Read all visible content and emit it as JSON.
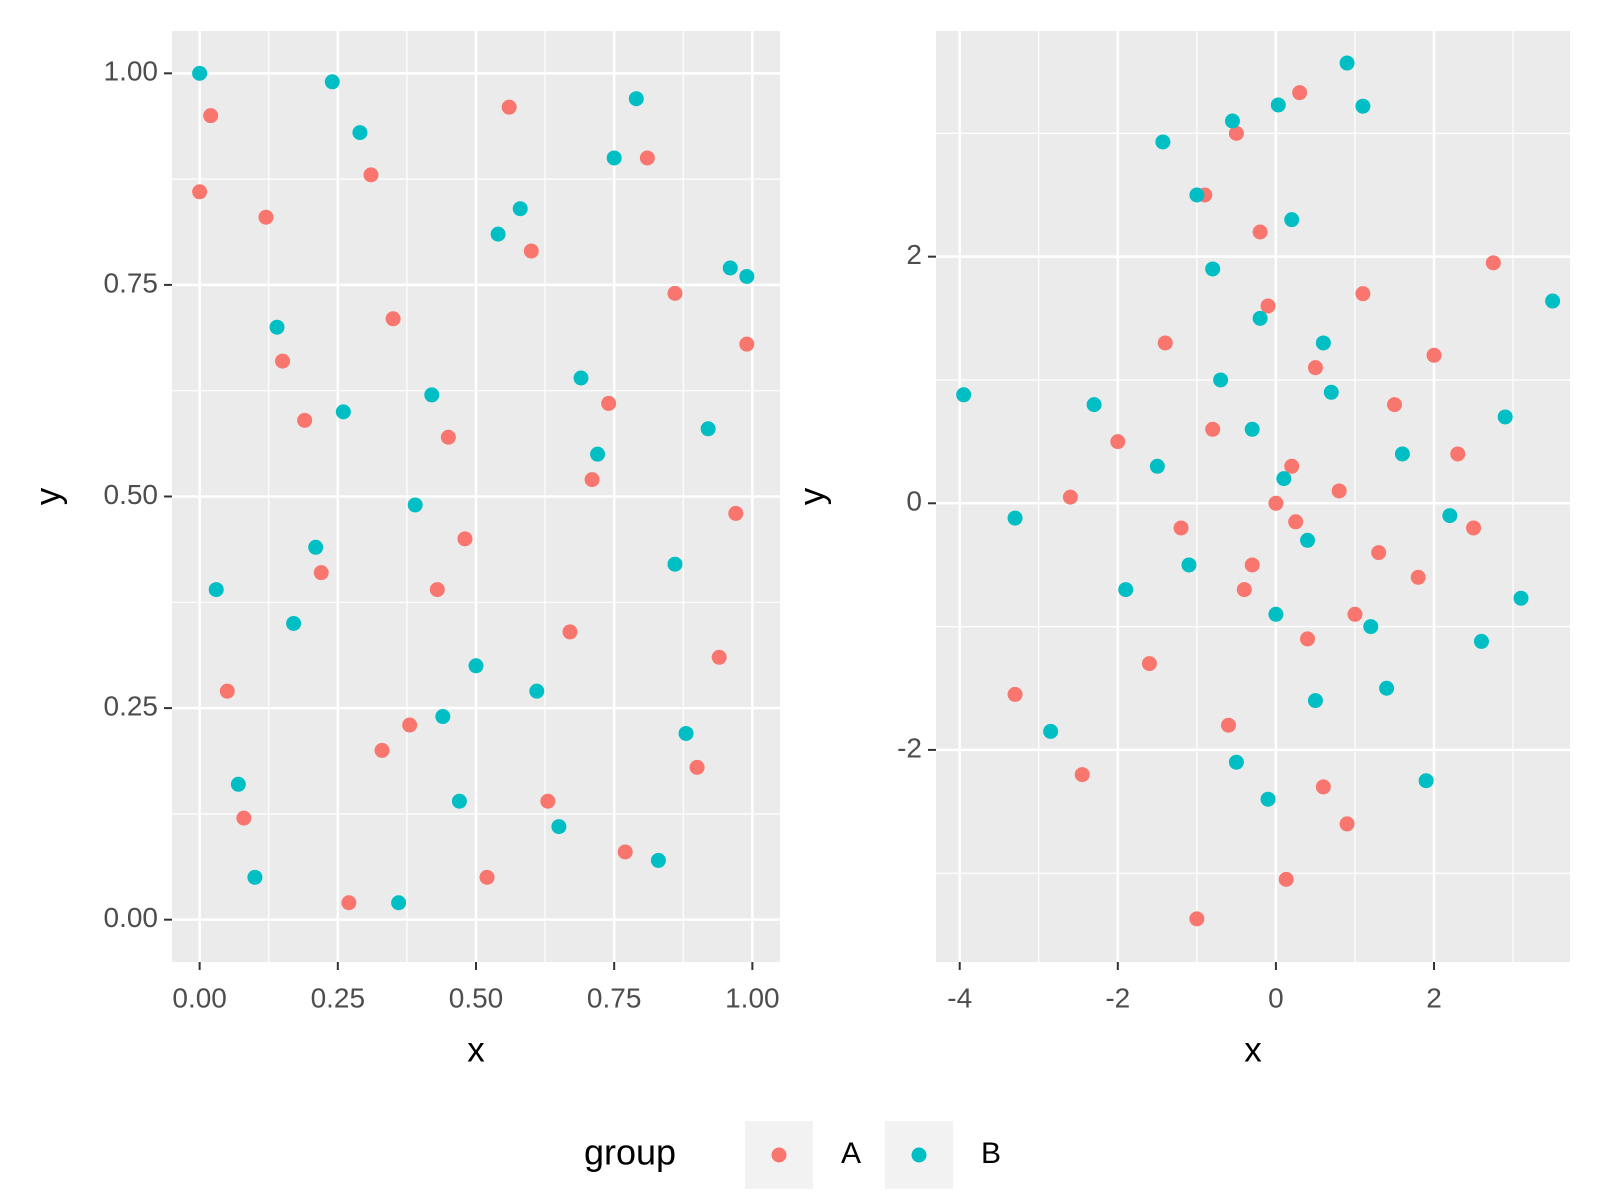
{
  "chart_data": [
    {
      "type": "scatter",
      "x_label": "x",
      "y_label": "y",
      "xlim": [
        -0.05,
        1.05
      ],
      "ylim": [
        -0.05,
        1.05
      ],
      "xticks": [
        {
          "value": 0,
          "label": "0.00"
        },
        {
          "value": 0.25,
          "label": "0.25"
        },
        {
          "value": 0.5,
          "label": "0.50"
        },
        {
          "value": 0.75,
          "label": "0.75"
        },
        {
          "value": 1,
          "label": "1.00"
        }
      ],
      "yticks": [
        {
          "value": 0,
          "label": "0.00"
        },
        {
          "value": 0.25,
          "label": "0.25"
        },
        {
          "value": 0.5,
          "label": "0.50"
        },
        {
          "value": 0.75,
          "label": "0.75"
        },
        {
          "value": 1,
          "label": "1.00"
        }
      ],
      "grid": true,
      "minor_grid": true,
      "series": [
        {
          "name": "A",
          "color": "#F8766D",
          "x": [
            0.02,
            0.08,
            0.15,
            0.22,
            0.31,
            0.38,
            0.45,
            0.52,
            0.6,
            0.67,
            0.74,
            0.81,
            0.9,
            0.97,
            0.05,
            0.12,
            0.27,
            0.35,
            0.43,
            0.56,
            0.63,
            0.71,
            0.86,
            0.94,
            0.0,
            0.19,
            0.48,
            0.77,
            0.99,
            0.33
          ],
          "y": [
            0.95,
            0.12,
            0.66,
            0.41,
            0.88,
            0.23,
            0.57,
            0.05,
            0.79,
            0.34,
            0.61,
            0.9,
            0.18,
            0.48,
            0.27,
            0.83,
            0.02,
            0.71,
            0.39,
            0.96,
            0.14,
            0.52,
            0.74,
            0.31,
            0.86,
            0.59,
            0.45,
            0.08,
            0.68,
            0.2
          ]
        },
        {
          "name": "B",
          "color": "#00BFC4",
          "x": [
            0.0,
            0.07,
            0.14,
            0.21,
            0.29,
            0.36,
            0.42,
            0.5,
            0.58,
            0.65,
            0.72,
            0.79,
            0.88,
            0.96,
            0.03,
            0.1,
            0.24,
            0.39,
            0.47,
            0.54,
            0.61,
            0.69,
            0.83,
            0.92,
            0.99,
            0.17,
            0.26,
            0.75,
            0.86,
            0.44
          ],
          "y": [
            1.0,
            0.16,
            0.7,
            0.44,
            0.93,
            0.02,
            0.62,
            0.3,
            0.84,
            0.11,
            0.55,
            0.97,
            0.22,
            0.77,
            0.39,
            0.05,
            0.99,
            0.49,
            0.14,
            0.81,
            0.27,
            0.64,
            0.07,
            0.58,
            0.76,
            0.35,
            0.6,
            0.9,
            0.42,
            0.24
          ]
        }
      ]
    },
    {
      "type": "scatter",
      "x_label": "x",
      "y_label": "y",
      "xlim": [
        -4.3,
        3.72
      ],
      "ylim": [
        -3.72,
        3.83
      ],
      "xticks": [
        -4,
        -2,
        0,
        2
      ],
      "yticks": [
        -2,
        0,
        2
      ],
      "grid": true,
      "minor_grid": true,
      "series": [
        {
          "name": "A",
          "color": "#F8766D",
          "x": [
            -1.0,
            0.13,
            0.3,
            -3.3,
            -2.45,
            2.75,
            -0.5,
            0.2,
            -0.3,
            0.5,
            -0.8,
            1.0,
            -1.2,
            1.5,
            -0.1,
            0.8,
            -1.6,
            2.0,
            -0.6,
            0.4,
            1.3,
            -2.0,
            2.3,
            -0.2,
            0.6,
            -1.4,
            1.8,
            0.0,
            -0.9,
            1.1,
            2.5,
            -2.6,
            0.9,
            -0.4,
            0.25
          ],
          "y": [
            -3.37,
            -3.05,
            3.33,
            -1.55,
            -2.2,
            1.95,
            3.0,
            0.3,
            -0.5,
            1.1,
            0.6,
            -0.9,
            -0.2,
            0.8,
            1.6,
            0.1,
            -1.3,
            1.2,
            -1.8,
            -1.1,
            -0.4,
            0.5,
            0.4,
            2.2,
            -2.3,
            1.3,
            -0.6,
            0.0,
            2.5,
            1.7,
            -0.2,
            0.05,
            -2.6,
            -0.7,
            -0.15
          ]
        },
        {
          "name": "B",
          "color": "#00BFC4",
          "x": [
            -3.95,
            3.5,
            3.1,
            0.9,
            -1.43,
            1.1,
            -2.85,
            2.6,
            0.03,
            -0.55,
            -3.3,
            0.1,
            -0.3,
            0.4,
            -0.7,
            0.7,
            -1.1,
            1.2,
            -0.2,
            0.5,
            -1.5,
            1.6,
            -0.5,
            0.2,
            -1.9,
            2.2,
            0.0,
            -0.8,
            1.4,
            -2.3,
            0.6,
            -0.1,
            2.9,
            -1.0,
            1.9
          ],
          "y": [
            0.88,
            1.64,
            -0.77,
            3.57,
            2.93,
            3.22,
            -1.85,
            -1.12,
            3.23,
            3.1,
            -0.12,
            0.2,
            0.6,
            -0.3,
            1.0,
            0.9,
            -0.5,
            -1.0,
            1.5,
            -1.6,
            0.3,
            0.4,
            -2.1,
            2.3,
            -0.7,
            -0.1,
            -0.9,
            1.9,
            -1.5,
            0.8,
            1.3,
            -2.4,
            0.7,
            2.5,
            -2.25
          ]
        }
      ]
    }
  ],
  "legend": {
    "title": "group",
    "position": "bottom"
  }
}
